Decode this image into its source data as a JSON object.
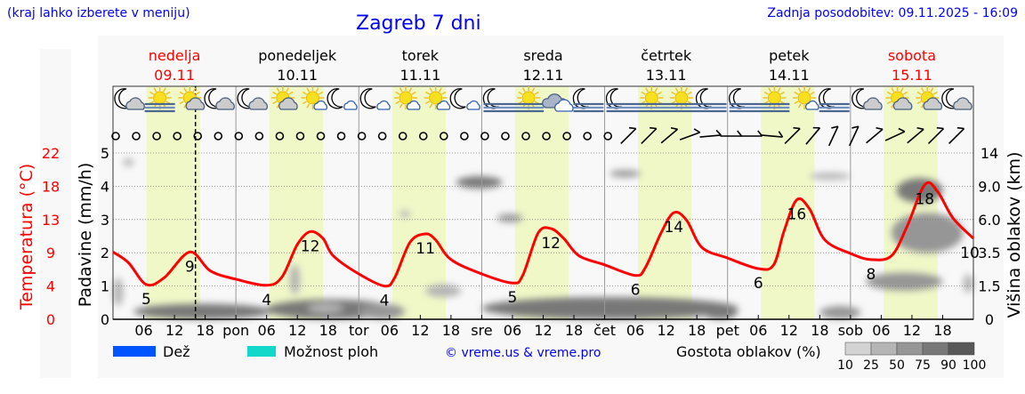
{
  "header": {
    "menu_hint": "(kraj lahko izberete v meniju)",
    "title": "Zagreb 7 dni",
    "updated": "Zadnja posodobitev: 09.11.2025 - 16:09"
  },
  "colors": {
    "title": "#0000ff",
    "weekend": "#ff0000",
    "temperature_line": "#ff0000",
    "daylight_band": "#f0f8c8",
    "rain": "#0055ff",
    "showers": "#11d8c8",
    "cloud_scale": [
      "#d3d3d3",
      "#b5b5b5",
      "#969696",
      "#787878",
      "#585858"
    ]
  },
  "days": [
    {
      "name": "nedelja",
      "date": "09.11",
      "abbr": "",
      "weekend": true
    },
    {
      "name": "ponedeljek",
      "date": "10.11",
      "abbr": "pon",
      "weekend": false
    },
    {
      "name": "torek",
      "date": "11.11",
      "abbr": "tor",
      "weekend": false
    },
    {
      "name": "sreda",
      "date": "12.11",
      "abbr": "sre",
      "weekend": false
    },
    {
      "name": "četrtek",
      "date": "13.11",
      "abbr": "čet",
      "weekend": false
    },
    {
      "name": "petek",
      "date": "14.11",
      "abbr": "pet",
      "weekend": false
    },
    {
      "name": "sobota",
      "date": "15.11",
      "abbr": "sob",
      "weekend": true
    }
  ],
  "weather_icons": [
    [
      "moon-cloud",
      "sun-fog",
      "sun-cloud",
      "moon-cloud"
    ],
    [
      "moon-cloud",
      "sun-cloud",
      "sun-small-cloud",
      "moon-small-cloud"
    ],
    [
      "moon-small-cloud",
      "sun-small-cloud",
      "sun-small-cloud",
      "moon-small-cloud"
    ],
    [
      "moon-fog",
      "sun-fog",
      "cloudy",
      "moon-fog"
    ],
    [
      "moon-fog",
      "sun-fog",
      "sun-fog",
      "moon-fog"
    ],
    [
      "moon-fog",
      "sun-fog",
      "sun-small-cloud",
      "moon-fog"
    ],
    [
      "moon-cloud",
      "sun-cloud",
      "sun-cloud",
      "moon-cloud"
    ]
  ],
  "chart_data": {
    "type": "line",
    "x_unit": "hours from 09.11 00:00",
    "x_range": [
      0,
      168
    ],
    "x_tick_labels": [
      "06",
      "12",
      "18"
    ],
    "now_hour": 16.1,
    "daylight_hours": [
      6.5,
      17
    ],
    "left_axis_temperature": {
      "label": "Temperatura (°C)",
      "ticks": [
        "0",
        "4",
        "9",
        "13",
        "18",
        "22"
      ],
      "range": [
        0,
        22
      ]
    },
    "left_axis_precip": {
      "label": "Padavine (mm/h)",
      "ticks": [
        "0",
        "1",
        "2",
        "3",
        "4",
        "5"
      ],
      "range": [
        0,
        5
      ]
    },
    "right_axis_cloud": {
      "label": "Višina oblakov (km)",
      "ticks": [
        "0",
        "1.5",
        "3.5",
        "6.0",
        "9.0",
        "14"
      ]
    },
    "temperature": [
      [
        0,
        8.9
      ],
      [
        3,
        7.5
      ],
      [
        6.5,
        4.6
      ],
      [
        10,
        5.5
      ],
      [
        15,
        8.9
      ],
      [
        19,
        6.4
      ],
      [
        24,
        5.3
      ],
      [
        30,
        4.5
      ],
      [
        33,
        5.6
      ],
      [
        36,
        9.9
      ],
      [
        38.5,
        11.6
      ],
      [
        41,
        10.7
      ],
      [
        43,
        8.4
      ],
      [
        48,
        6.0
      ],
      [
        53,
        4.4
      ],
      [
        55,
        5.5
      ],
      [
        58,
        10.2
      ],
      [
        61,
        11.3
      ],
      [
        63,
        10.5
      ],
      [
        66,
        7.9
      ],
      [
        72,
        6.0
      ],
      [
        78,
        4.8
      ],
      [
        80,
        5.8
      ],
      [
        83,
        11.4
      ],
      [
        85.5,
        12.0
      ],
      [
        88,
        10.7
      ],
      [
        91,
        8.4
      ],
      [
        96,
        7.2
      ],
      [
        102,
        5.8
      ],
      [
        104,
        6.9
      ],
      [
        107,
        11.4
      ],
      [
        109.5,
        14.1
      ],
      [
        112,
        13.1
      ],
      [
        115,
        9.5
      ],
      [
        120,
        8.1
      ],
      [
        126,
        6.7
      ],
      [
        129,
        7.2
      ],
      [
        131,
        11.6
      ],
      [
        133.5,
        15.8
      ],
      [
        136,
        14.6
      ],
      [
        139,
        10.5
      ],
      [
        144,
        8.7
      ],
      [
        148,
        7.9
      ],
      [
        152,
        8.4
      ],
      [
        155,
        12.2
      ],
      [
        158.5,
        17.8
      ],
      [
        161,
        16.9
      ],
      [
        164,
        13.4
      ],
      [
        168,
        10.7
      ]
    ],
    "temperature_labels": [
      [
        6.5,
        "5"
      ],
      [
        15,
        "9"
      ],
      [
        30,
        "4"
      ],
      [
        38.5,
        "12"
      ],
      [
        53,
        "4"
      ],
      [
        61,
        "11"
      ],
      [
        78,
        "5"
      ],
      [
        85.5,
        "12"
      ],
      [
        102,
        "6"
      ],
      [
        109.5,
        "14"
      ],
      [
        126,
        "6"
      ],
      [
        133.5,
        "16"
      ],
      [
        148,
        "8"
      ],
      [
        158.5,
        "18"
      ],
      [
        168,
        "10"
      ]
    ],
    "precipitation": [],
    "clouds": [
      {
        "t": [
          4,
          31
        ],
        "km": [
          0,
          0.7
        ],
        "density": 80
      },
      {
        "t": [
          30,
          55
        ],
        "km": [
          0,
          0.9
        ],
        "density": 75
      },
      {
        "t": [
          0,
          2
        ],
        "km": [
          0.6,
          2.0
        ],
        "density": 40
      },
      {
        "t": [
          2,
          4
        ],
        "km": [
          12,
          13.2
        ],
        "density": 30
      },
      {
        "t": [
          34.5,
          36.5
        ],
        "km": [
          1.1,
          2.8
        ],
        "density": 40
      },
      {
        "t": [
          38,
          45
        ],
        "km": [
          0.3,
          0.7
        ],
        "density": 35
      },
      {
        "t": [
          48,
          57
        ],
        "km": [
          0,
          0.7
        ],
        "density": 60
      },
      {
        "t": [
          56,
          58
        ],
        "km": [
          6.2,
          6.8
        ],
        "density": 40
      },
      {
        "t": [
          61,
          68
        ],
        "km": [
          1.0,
          1.6
        ],
        "density": 30
      },
      {
        "t": [
          72,
          122
        ],
        "km": [
          0,
          1.0
        ],
        "density": 75
      },
      {
        "t": [
          67,
          76
        ],
        "km": [
          8.8,
          10.5
        ],
        "density": 80
      },
      {
        "t": [
          75,
          80
        ],
        "km": [
          5.8,
          6.5
        ],
        "density": 60
      },
      {
        "t": [
          97,
          103
        ],
        "km": [
          10.5,
          11.3
        ],
        "density": 60
      },
      {
        "t": [
          115,
          122
        ],
        "km": [
          0,
          0.7
        ],
        "density": 85
      },
      {
        "t": [
          138,
          146
        ],
        "km": [
          0,
          0.6
        ],
        "density": 60
      },
      {
        "t": [
          136,
          144
        ],
        "km": [
          10,
          11
        ],
        "density": 40
      },
      {
        "t": [
          147,
          162
        ],
        "km": [
          1.3,
          2.3
        ],
        "density": 55
      },
      {
        "t": [
          153,
          162
        ],
        "km": [
          7.5,
          10.2
        ],
        "density": 88
      },
      {
        "t": [
          152,
          166
        ],
        "km": [
          3.5,
          6.6
        ],
        "density": 60
      },
      {
        "t": [
          166,
          168
        ],
        "km": [
          1.2,
          2.2
        ],
        "density": 40
      }
    ],
    "wind_direction_deg": [
      null,
      null,
      null,
      null,
      null,
      null,
      null,
      null,
      null,
      null,
      null,
      null,
      null,
      null,
      null,
      null,
      null,
      null,
      null,
      null,
      null,
      null,
      null,
      null,
      null,
      225,
      225,
      230,
      250,
      265,
      270,
      270,
      275,
      225,
      220,
      205,
      205,
      230,
      245,
      230,
      225,
      225
    ]
  },
  "legend": {
    "rain": "Dež",
    "showers": "Možnost ploh",
    "copyright": "© vreme.us & vreme.pro",
    "cloud_density": "Gostota oblakov (%)",
    "cloud_scale_labels": [
      "10",
      "25",
      "50",
      "75",
      "90",
      "100"
    ]
  }
}
